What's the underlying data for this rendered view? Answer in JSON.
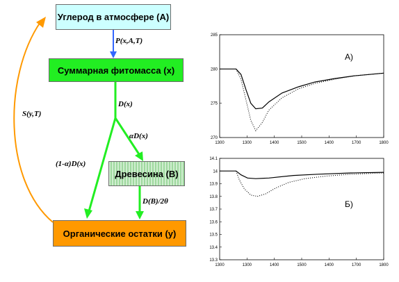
{
  "diagram": {
    "atmosphere": "Углерод в атмосфере (А)",
    "phytomass": "Суммарная фитомасса (x)",
    "wood": "Древесина (B)",
    "organic": "Органические остатки (y)",
    "label_P": "P(x,A,T)",
    "label_Dx": "D(x)",
    "label_aDx": "αD(x)",
    "label_1aDx": "(1-α)D(x)",
    "label_DB": "D(B)/2θ",
    "label_S": "S(y,T)",
    "colors": {
      "atmosphere": "#ccffff",
      "phytomass": "#22ee22",
      "organic": "#ff9900",
      "arrow_green": "#22ee22",
      "arrow_blue": "#3366ff",
      "arrow_orange": "#ff9900"
    }
  },
  "chart_data": [
    {
      "type": "line",
      "panel_label": "А)",
      "x_ticks": [
        "1300",
        "1300",
        "1400",
        "1500",
        "1400",
        "1700",
        "1800"
      ],
      "y_ticks": [
        "285",
        "280",
        "275",
        "270"
      ],
      "ylim": [
        270,
        285
      ],
      "series": [
        {
          "style": "solid",
          "points": [
            [
              0,
              280
            ],
            [
              0.1,
              280
            ],
            [
              0.13,
              279.2
            ],
            [
              0.16,
              277
            ],
            [
              0.19,
              275
            ],
            [
              0.22,
              274.2
            ],
            [
              0.26,
              274.3
            ],
            [
              0.3,
              275.2
            ],
            [
              0.38,
              276.5
            ],
            [
              0.48,
              277.4
            ],
            [
              0.58,
              278.1
            ],
            [
              0.7,
              278.6
            ],
            [
              0.82,
              279
            ],
            [
              1,
              279.4
            ]
          ]
        },
        {
          "style": "dotted",
          "points": [
            [
              0.1,
              280
            ],
            [
              0.13,
              278.5
            ],
            [
              0.16,
              275.5
            ],
            [
              0.19,
              272.5
            ],
            [
              0.22,
              271
            ],
            [
              0.26,
              272.2
            ],
            [
              0.3,
              274
            ],
            [
              0.38,
              275.8
            ],
            [
              0.48,
              277.1
            ],
            [
              0.58,
              277.9
            ],
            [
              0.7,
              278.5
            ],
            [
              0.82,
              279
            ],
            [
              1,
              279.4
            ]
          ]
        }
      ]
    },
    {
      "type": "line",
      "panel_label": "Б)",
      "x_ticks": [
        "1300",
        "1300",
        "1400",
        "1500",
        "1400",
        "1700",
        "1800"
      ],
      "y_ticks": [
        "14.1",
        "14",
        "13.9",
        "13.8",
        "13.7",
        "13.6",
        "13.5",
        "13.4",
        "13.3"
      ],
      "ylim": [
        13.3,
        14.1
      ],
      "series": [
        {
          "style": "solid",
          "points": [
            [
              0,
              14
            ],
            [
              0.1,
              14
            ],
            [
              0.13,
              13.97
            ],
            [
              0.17,
              13.945
            ],
            [
              0.22,
              13.94
            ],
            [
              0.3,
              13.945
            ],
            [
              0.45,
              13.965
            ],
            [
              0.6,
              13.975
            ],
            [
              0.8,
              13.985
            ],
            [
              1,
              13.99
            ]
          ]
        },
        {
          "style": "dotted",
          "points": [
            [
              0.1,
              14
            ],
            [
              0.12,
              13.93
            ],
            [
              0.15,
              13.86
            ],
            [
              0.19,
              13.81
            ],
            [
              0.23,
              13.8
            ],
            [
              0.28,
              13.82
            ],
            [
              0.34,
              13.865
            ],
            [
              0.42,
              13.91
            ],
            [
              0.52,
              13.94
            ],
            [
              0.65,
              13.96
            ],
            [
              0.8,
              13.975
            ],
            [
              1,
              13.985
            ]
          ]
        }
      ]
    }
  ]
}
